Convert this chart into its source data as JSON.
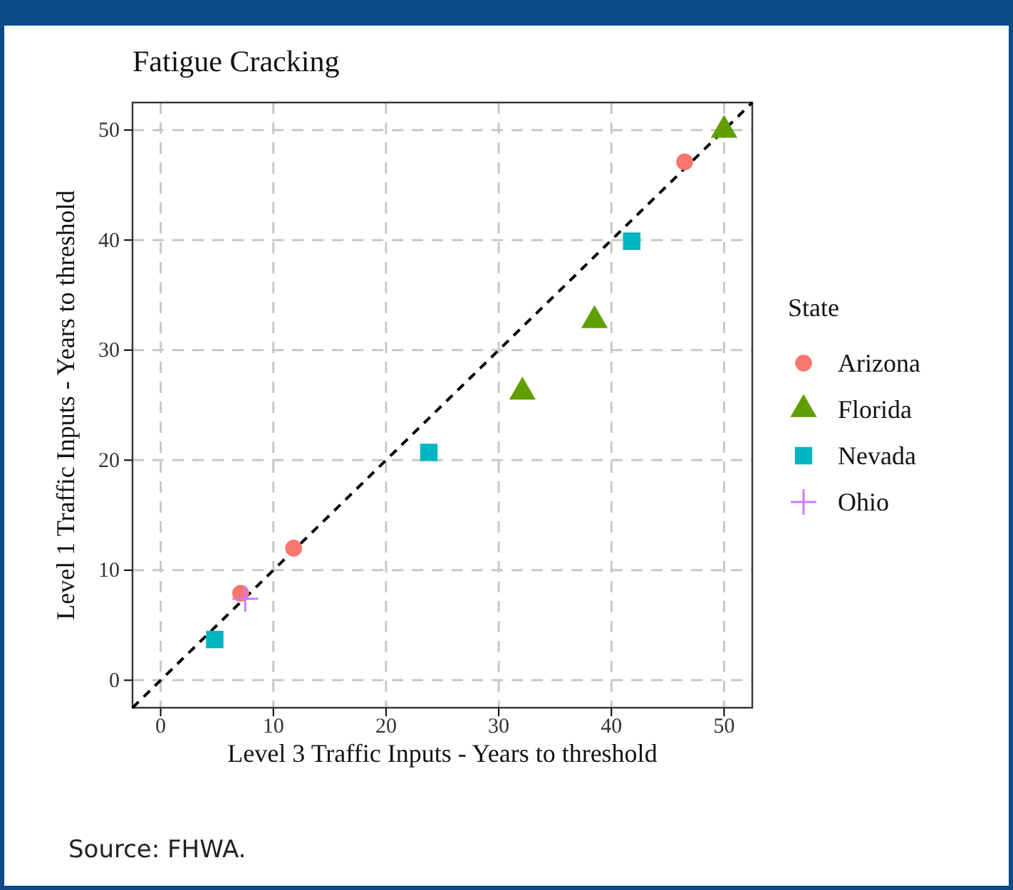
{
  "chart_data": {
    "type": "scatter",
    "title": "Fatigue Cracking",
    "xlabel": "Level 3 Traffic Inputs - Years to threshold",
    "ylabel": "Level 1 Traffic Inputs - Years to threshold",
    "legend_title": "State",
    "xlim": [
      -2.5,
      52.5
    ],
    "ylim": [
      -2.5,
      52.5
    ],
    "xticks": [
      0,
      10,
      20,
      30,
      40,
      50
    ],
    "yticks": [
      0,
      10,
      20,
      30,
      40,
      50
    ],
    "grid": true,
    "legend": "right",
    "series": [
      {
        "name": "Arizona",
        "color": "#f8766d",
        "marker": "circle",
        "x": [
          7.1,
          11.8,
          46.5
        ],
        "values": [
          7.9,
          12.0,
          47.1
        ]
      },
      {
        "name": "Florida",
        "color": "#5fa000",
        "marker": "triangle",
        "x": [
          32.1,
          38.5,
          50.0
        ],
        "values": [
          26.2,
          32.7,
          50.0
        ]
      },
      {
        "name": "Nevada",
        "color": "#00b5c0",
        "marker": "square",
        "x": [
          4.8,
          23.8,
          41.8
        ],
        "values": [
          3.7,
          20.7,
          39.9
        ]
      },
      {
        "name": "Ohio",
        "color": "#c77cff",
        "marker": "cross",
        "x": [
          7.5
        ],
        "values": [
          7.4
        ]
      },
      {
        "type": "line",
        "color": "#000000",
        "line_style": "dashed",
        "marker": "none",
        "x": [
          -2.5,
          52.5
        ],
        "values": [
          -2.5,
          52.5
        ]
      }
    ],
    "annotations": [
      "Source: FHWA."
    ]
  }
}
